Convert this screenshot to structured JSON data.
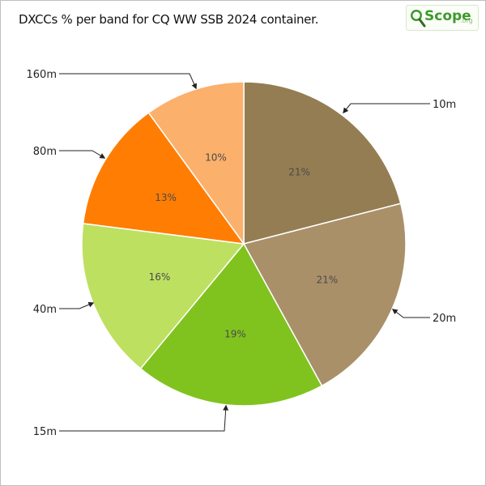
{
  "chart_data": {
    "type": "pie",
    "title": "DXCCs % per band for CQ WW SSB 2024 container.",
    "slices": [
      {
        "label": "10m",
        "value": 21,
        "display": "21%",
        "color": "#947d53"
      },
      {
        "label": "20m",
        "value": 21,
        "display": "21%",
        "color": "#a99069"
      },
      {
        "label": "15m",
        "value": 19,
        "display": "19%",
        "color": "#80c31f"
      },
      {
        "label": "40m",
        "value": 16,
        "display": "16%",
        "color": "#bde061"
      },
      {
        "label": "80m",
        "value": 13,
        "display": "13%",
        "color": "#ff7d03"
      },
      {
        "label": "160m",
        "value": 10,
        "display": "10%",
        "color": "#fbb06c"
      }
    ],
    "start": "12 o'clock",
    "direction": "clockwise",
    "legend": "none"
  },
  "logo": {
    "text": "Scope",
    "suffix": ".org"
  }
}
